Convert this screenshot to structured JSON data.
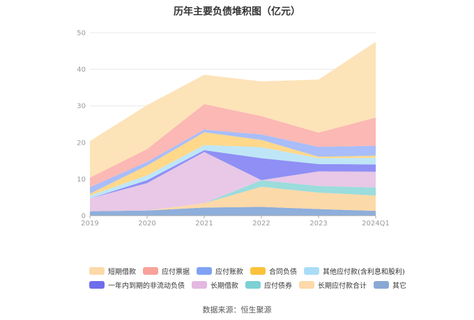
{
  "chart_data": {
    "type": "area",
    "stacked": true,
    "title": "历年主要负债堆积图（亿元）",
    "categories": [
      "2019",
      "2020",
      "2021",
      "2022",
      "2023",
      "2024Q1"
    ],
    "ylim": [
      0,
      50
    ],
    "yticks": [
      0,
      10,
      20,
      30,
      40,
      50
    ],
    "grid": true,
    "legend_position": "bottom",
    "series": [
      {
        "name": "其它",
        "color": "#8EAEDB",
        "values": [
          1.2,
          1.4,
          2.2,
          2.4,
          1.8,
          1.3
        ]
      },
      {
        "name": "长期应付款合计",
        "color": "#FCD9A8",
        "values": [
          0.0,
          0.0,
          1.2,
          5.5,
          4.5,
          4.2
        ]
      },
      {
        "name": "应付债券",
        "color": "#9BDCDC",
        "values": [
          0.0,
          0.0,
          0.0,
          1.8,
          1.8,
          2.2
        ]
      },
      {
        "name": "长期借款",
        "color": "#E8C8E6",
        "values": [
          3.5,
          7.5,
          14.0,
          0.0,
          4.0,
          4.3
        ]
      },
      {
        "name": "一年内到期的非流动负债",
        "color": "#8F8FF5",
        "values": [
          0.0,
          0.8,
          0.5,
          6.0,
          2.0,
          2.0
        ]
      },
      {
        "name": "其他应付款(含利息和股利)",
        "color": "#BEE6F7",
        "values": [
          0.8,
          1.3,
          1.4,
          3.0,
          1.6,
          1.8
        ]
      },
      {
        "name": "合同负债",
        "color": "#FFD88A",
        "values": [
          0.5,
          2.7,
          3.5,
          2.0,
          0.4,
          0.6
        ]
      },
      {
        "name": "应付账款",
        "color": "#A8BDF9",
        "values": [
          1.8,
          1.0,
          0.7,
          1.5,
          2.7,
          2.7
        ]
      },
      {
        "name": "应付票据",
        "color": "#FBB8B4",
        "values": [
          2.6,
          3.5,
          7.0,
          5.0,
          3.9,
          7.7
        ]
      },
      {
        "name": "短期借款",
        "color": "#FDE3B8",
        "values": [
          10.0,
          12.0,
          8.0,
          9.5,
          14.5,
          20.7
        ]
      }
    ]
  },
  "legend": {
    "rows": [
      [
        {
          "label": "短期借款",
          "color": "#FCD9A8"
        },
        {
          "label": "应付票据",
          "color": "#F8A29A"
        },
        {
          "label": "应付账款",
          "color": "#7FA2F2"
        },
        {
          "label": "合同负债",
          "color": "#FBC23C"
        },
        {
          "label": "其他应付款(含利息和股利)",
          "color": "#A9DDF7"
        }
      ],
      [
        {
          "label": "一年内到期的非流动负债",
          "color": "#6E6EEB"
        },
        {
          "label": "长期借款",
          "color": "#E4B8E0"
        },
        {
          "label": "应付债券",
          "color": "#7DD0D4"
        },
        {
          "label": "长期应付款合计",
          "color": "#FCD9A8"
        },
        {
          "label": "其它",
          "color": "#8AA8D6"
        }
      ]
    ]
  },
  "source": "数据来源：恒生聚源"
}
